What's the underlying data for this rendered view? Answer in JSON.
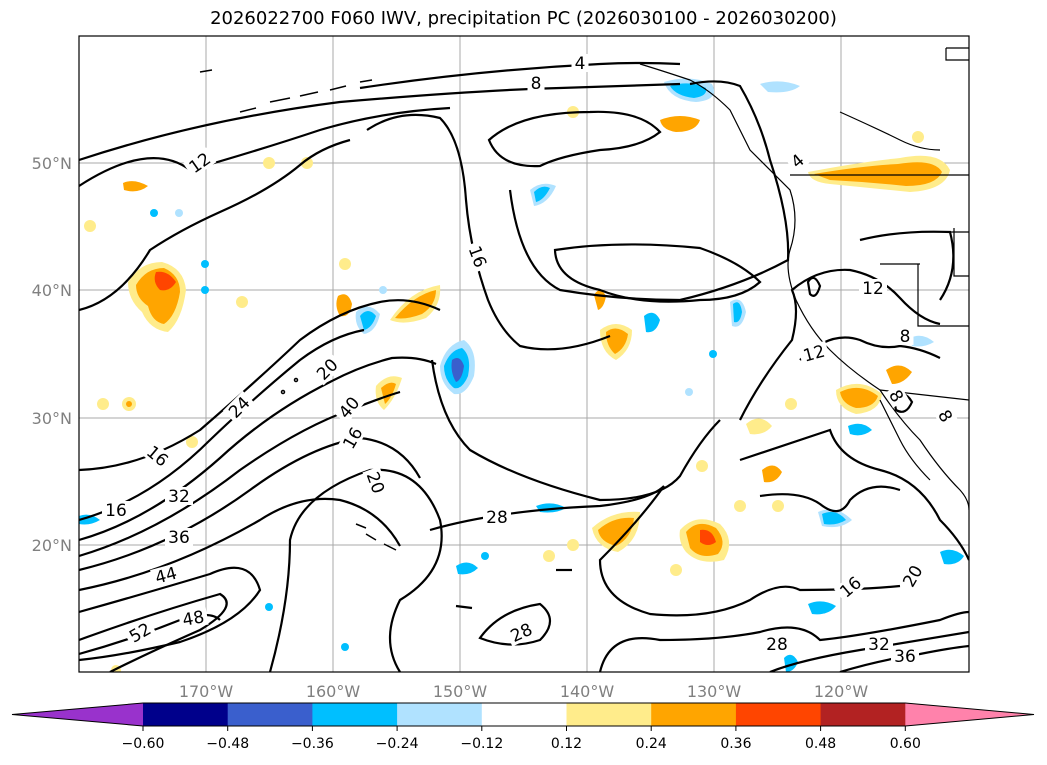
{
  "title": "2026022700 F060 IWV, precipitation PC (2026030100 - 2026030200)",
  "lat_labels": [
    "50°N",
    "40°N",
    "30°N",
    "20°N"
  ],
  "lon_labels": [
    "170°W",
    "160°W",
    "150°W",
    "140°W",
    "130°W",
    "120°W"
  ],
  "contour_labels": [
    "4",
    "8",
    "12",
    "16",
    "16",
    "16",
    "20",
    "24",
    "32",
    "40",
    "16",
    "20",
    "36",
    "44",
    "48",
    "52",
    "28",
    "28",
    "16",
    "20",
    "28",
    "32",
    "36",
    "12",
    "12",
    "8",
    "8",
    "8",
    "4"
  ],
  "colorbar": {
    "ticks": [
      "−0.60",
      "−0.48",
      "−0.36",
      "−0.24",
      "−0.12",
      "0.12",
      "0.24",
      "0.36",
      "0.48",
      "0.60"
    ],
    "colors": [
      "#9932cc",
      "#00008b",
      "#3a5fcd",
      "#00bfff",
      "#b0e2ff",
      "#ffffff",
      "#ffec8b",
      "#ffa500",
      "#ff4500",
      "#b22222",
      "#ff82ab"
    ]
  },
  "colors": {
    "pos_light": "#ffec8b",
    "pos_mid": "#ffa500",
    "pos_strong": "#ff4500",
    "neg_light": "#b0e2ff",
    "neg_mid": "#00bfff",
    "neg_strong": "#3a5fcd"
  }
}
